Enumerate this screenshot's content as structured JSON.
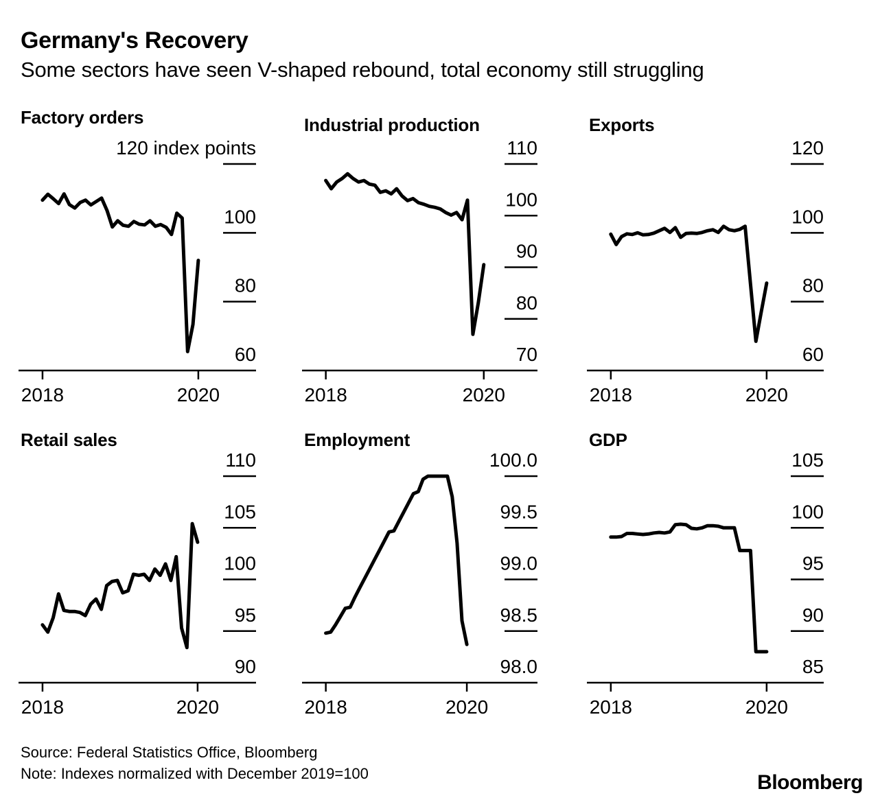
{
  "header": {
    "title": "Germany's Recovery",
    "subtitle": "Some sectors have seen V-shaped rebound, total economy still struggling"
  },
  "footer": {
    "source": "Source: Federal Statistics Office, Bloomberg",
    "note": "Note: Indexes normalized with December 2019=100",
    "logo": "Bloomberg"
  },
  "style": {
    "line_color": "#000000",
    "axis_color": "#000000",
    "background": "#ffffff",
    "line_width": 5,
    "axis_width": 2.5
  },
  "chart_data": [
    {
      "id": "factory-orders",
      "title": "Factory orders",
      "type": "line",
      "x_start": "2018-01",
      "x_end": "2020-06",
      "x_unit": "month",
      "x_tick_labels": [
        "2018",
        "2020"
      ],
      "y_ticks": [
        {
          "label": "120 index points",
          "value": 120
        },
        {
          "label": "100",
          "value": 100
        },
        {
          "label": "80",
          "value": 80
        },
        {
          "label": "60",
          "value": 60
        }
      ],
      "ylim": [
        60,
        120
      ],
      "values": [
        109.5,
        111.2,
        109.9,
        108.5,
        111.3,
        108.2,
        107.2,
        108.8,
        109.5,
        108.1,
        109.1,
        110.1,
        106.5,
        101.7,
        103.5,
        102.2,
        101.9,
        103.3,
        102.5,
        102.3,
        103.5,
        101.9,
        102.4,
        101.6,
        99.5,
        105.7,
        104.3,
        65.5,
        73.4,
        92.0
      ],
      "layout_hints": {
        "grid": false,
        "labels_right": true,
        "x0_frac": 0.101,
        "x1_frac": 0.757
      }
    },
    {
      "id": "industrial-production",
      "title": "Industrial production",
      "type": "line",
      "x_start": "2018-01",
      "x_end": "2020-06",
      "x_unit": "month",
      "x_tick_labels": [
        "2018",
        "2020"
      ],
      "y_ticks": [
        {
          "label": "110",
          "value": 110
        },
        {
          "label": "100",
          "value": 100
        },
        {
          "label": "90",
          "value": 90
        },
        {
          "label": "80",
          "value": 80
        },
        {
          "label": "70",
          "value": 70
        }
      ],
      "ylim": [
        70,
        110
      ],
      "values": [
        106.8,
        105.2,
        106.5,
        107.2,
        108.1,
        107.2,
        106.5,
        106.8,
        106.1,
        105.9,
        104.5,
        104.8,
        104.2,
        105.2,
        103.8,
        102.9,
        103.3,
        102.5,
        102.2,
        101.8,
        101.6,
        101.3,
        100.6,
        100.1,
        100.6,
        99.2,
        103.0,
        77.0,
        83.2,
        90.5
      ],
      "layout_hints": {
        "grid": false,
        "labels_right": true,
        "x0_frac": 0.101,
        "x1_frac": 0.772
      }
    },
    {
      "id": "exports",
      "title": "Exports",
      "type": "line",
      "x_start": "2018-01",
      "x_end": "2020-06",
      "x_unit": "month",
      "x_tick_labels": [
        "2018",
        "2020"
      ],
      "y_ticks": [
        {
          "label": "120",
          "value": 120
        },
        {
          "label": "100",
          "value": 100
        },
        {
          "label": "80",
          "value": 80
        },
        {
          "label": "60",
          "value": 60
        }
      ],
      "ylim": [
        60,
        120
      ],
      "values": [
        99.6,
        96.6,
        98.9,
        99.7,
        99.5,
        100.0,
        99.4,
        99.5,
        99.9,
        100.6,
        101.3,
        100.1,
        101.5,
        98.7,
        99.8,
        99.9,
        99.8,
        100.1,
        100.6,
        100.9,
        100.1,
        101.9,
        100.9,
        100.6,
        101.0,
        101.9,
        85.0,
        68.5,
        77.0,
        85.4
      ],
      "layout_hints": {
        "grid": false,
        "labels_right": true,
        "x0_frac": 0.101,
        "x1_frac": 0.759
      }
    },
    {
      "id": "retail-sales",
      "title": "Retail sales",
      "type": "line",
      "x_start": "2018-01",
      "x_end": "2020-06",
      "x_unit": "month",
      "x_tick_labels": [
        "2018",
        "2020"
      ],
      "y_ticks": [
        {
          "label": "110",
          "value": 110
        },
        {
          "label": "105",
          "value": 105
        },
        {
          "label": "100",
          "value": 100
        },
        {
          "label": "95",
          "value": 95
        },
        {
          "label": "90",
          "value": 90
        }
      ],
      "ylim": [
        90,
        110
      ],
      "values": [
        95.6,
        94.9,
        96.3,
        98.6,
        97.0,
        96.9,
        96.9,
        96.8,
        96.5,
        97.6,
        98.1,
        97.1,
        99.4,
        99.8,
        99.9,
        98.7,
        98.9,
        100.5,
        100.4,
        100.5,
        99.9,
        101.0,
        100.4,
        101.5,
        99.9,
        102.2,
        95.3,
        93.4,
        105.4,
        103.6
      ],
      "layout_hints": {
        "grid": false,
        "labels_right": true,
        "x0_frac": 0.101,
        "x1_frac": 0.754
      }
    },
    {
      "id": "employment",
      "title": "Employment",
      "type": "line",
      "x_start": "2018-01",
      "x_end": "2020-06",
      "x_unit": "month",
      "x_tick_labels": [
        "2018",
        "2020"
      ],
      "y_ticks": [
        {
          "label": "100.0",
          "value": 100.0
        },
        {
          "label": "99.5",
          "value": 99.5
        },
        {
          "label": "99.0",
          "value": 99.0
        },
        {
          "label": "98.5",
          "value": 98.5
        },
        {
          "label": "98.0",
          "value": 98.0
        }
      ],
      "ylim": [
        98.0,
        100.0
      ],
      "values": [
        98.48,
        98.49,
        98.56,
        98.64,
        98.72,
        98.73,
        98.83,
        98.92,
        99.01,
        99.1,
        99.19,
        99.28,
        99.37,
        99.46,
        99.47,
        99.56,
        99.65,
        99.74,
        99.83,
        99.85,
        99.97,
        100.0,
        100.0,
        100.0,
        100.0,
        100.0,
        99.8,
        99.35,
        98.6,
        98.37
      ],
      "layout_hints": {
        "grid": false,
        "labels_right": true,
        "x0_frac": 0.101,
        "x1_frac": 0.7
      }
    },
    {
      "id": "gdp",
      "title": "GDP",
      "type": "line",
      "x_start": "2018-01",
      "x_end": "2020-06",
      "x_unit": "month",
      "x_tick_labels": [
        "2018",
        "2020"
      ],
      "y_ticks": [
        {
          "label": "105",
          "value": 105
        },
        {
          "label": "100",
          "value": 100
        },
        {
          "label": "95",
          "value": 95
        },
        {
          "label": "90",
          "value": 90
        },
        {
          "label": "85",
          "value": 85
        }
      ],
      "ylim": [
        85,
        105
      ],
      "values": [
        99.1,
        99.1,
        99.15,
        99.45,
        99.45,
        99.4,
        99.35,
        99.4,
        99.5,
        99.55,
        99.5,
        99.6,
        100.3,
        100.35,
        100.3,
        99.95,
        99.9,
        100.0,
        100.2,
        100.2,
        100.15,
        100.0,
        100.0,
        100.0,
        97.8,
        97.8,
        97.8,
        88.0,
        88.0,
        88.0
      ],
      "layout_hints": {
        "grid": false,
        "labels_right": true,
        "x0_frac": 0.101,
        "x1_frac": 0.759
      }
    }
  ]
}
